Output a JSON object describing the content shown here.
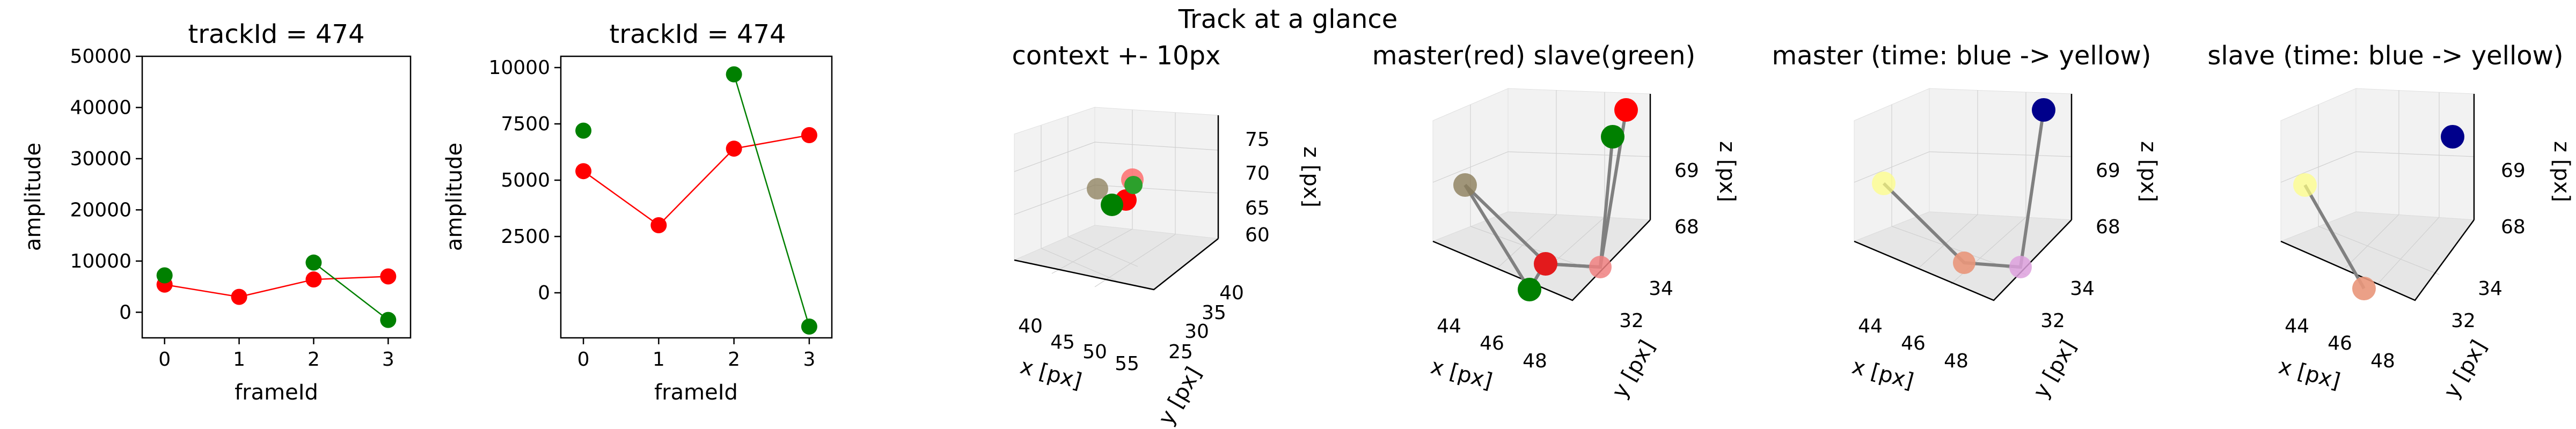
{
  "suptitle": "Track at a glance",
  "colors": {
    "red": "#ff0000",
    "green": "#008000",
    "gray": "#808080"
  },
  "chart_data": [
    {
      "type": "line",
      "title": "trackId = 474",
      "xlabel": "frameId",
      "ylabel": "amplitude",
      "xlim": [
        -0.3,
        3.3
      ],
      "ylim": [
        -5000,
        50000
      ],
      "xticks": [
        "0",
        "1",
        "2",
        "3"
      ],
      "yticks": [
        "0",
        "10000",
        "20000",
        "30000",
        "40000",
        "50000"
      ],
      "series": [
        {
          "color": "red",
          "x": [
            0,
            1,
            2,
            3
          ],
          "y": [
            5400,
            3000,
            6400,
            7000
          ]
        },
        {
          "color": "green",
          "x": [
            0,
            2,
            3
          ],
          "y": [
            7200,
            9700,
            -1500
          ],
          "connect_from_index": 1
        }
      ]
    },
    {
      "type": "line",
      "title": "trackId = 474",
      "xlabel": "frameId",
      "ylabel": "amplitude",
      "xlim": [
        -0.3,
        3.3
      ],
      "ylim": [
        -2000,
        10500
      ],
      "xticks": [
        "0",
        "1",
        "2",
        "3"
      ],
      "yticks": [
        "0",
        "2500",
        "5000",
        "7500",
        "10000"
      ],
      "series": [
        {
          "color": "red",
          "x": [
            0,
            1,
            2,
            3
          ],
          "y": [
            5400,
            3000,
            6400,
            7000
          ]
        },
        {
          "color": "green",
          "x": [
            0,
            2,
            3
          ],
          "y": [
            7200,
            9700,
            -1500
          ],
          "connect_from_index": 1
        }
      ]
    },
    {
      "type": "scatter3d",
      "title": "context +- 10px",
      "xlabel": "x [px]",
      "ylabel": "y [px]",
      "zlabel": "z [px]",
      "xticks": [
        "40",
        "45",
        "50",
        "55"
      ],
      "yticks": [
        "25",
        "30",
        "35",
        "40"
      ],
      "zticks": [
        "60",
        "65",
        "70",
        "75"
      ]
    },
    {
      "type": "scatter3d",
      "title": "master(red) slave(green)",
      "xlabel": "x [px]",
      "ylabel": "y [px]",
      "zlabel": "z [px]",
      "xticks": [
        "44",
        "46",
        "48"
      ],
      "yticks": [
        "32",
        "34"
      ],
      "zticks": [
        "68",
        "69"
      ]
    },
    {
      "type": "scatter3d",
      "title": "master (time: blue -> yellow)",
      "xlabel": "x [px]",
      "ylabel": "y [px]",
      "zlabel": "z [px]",
      "xticks": [
        "44",
        "46",
        "48"
      ],
      "yticks": [
        "32",
        "34"
      ],
      "zticks": [
        "68",
        "69"
      ]
    },
    {
      "type": "scatter3d",
      "title": "slave (time: blue -> yellow)",
      "xlabel": "x [px]",
      "ylabel": "y [px]",
      "zlabel": "z [px]",
      "xticks": [
        "44",
        "46",
        "48"
      ],
      "yticks": [
        "32",
        "34"
      ],
      "zticks": [
        "68",
        "69"
      ]
    }
  ]
}
